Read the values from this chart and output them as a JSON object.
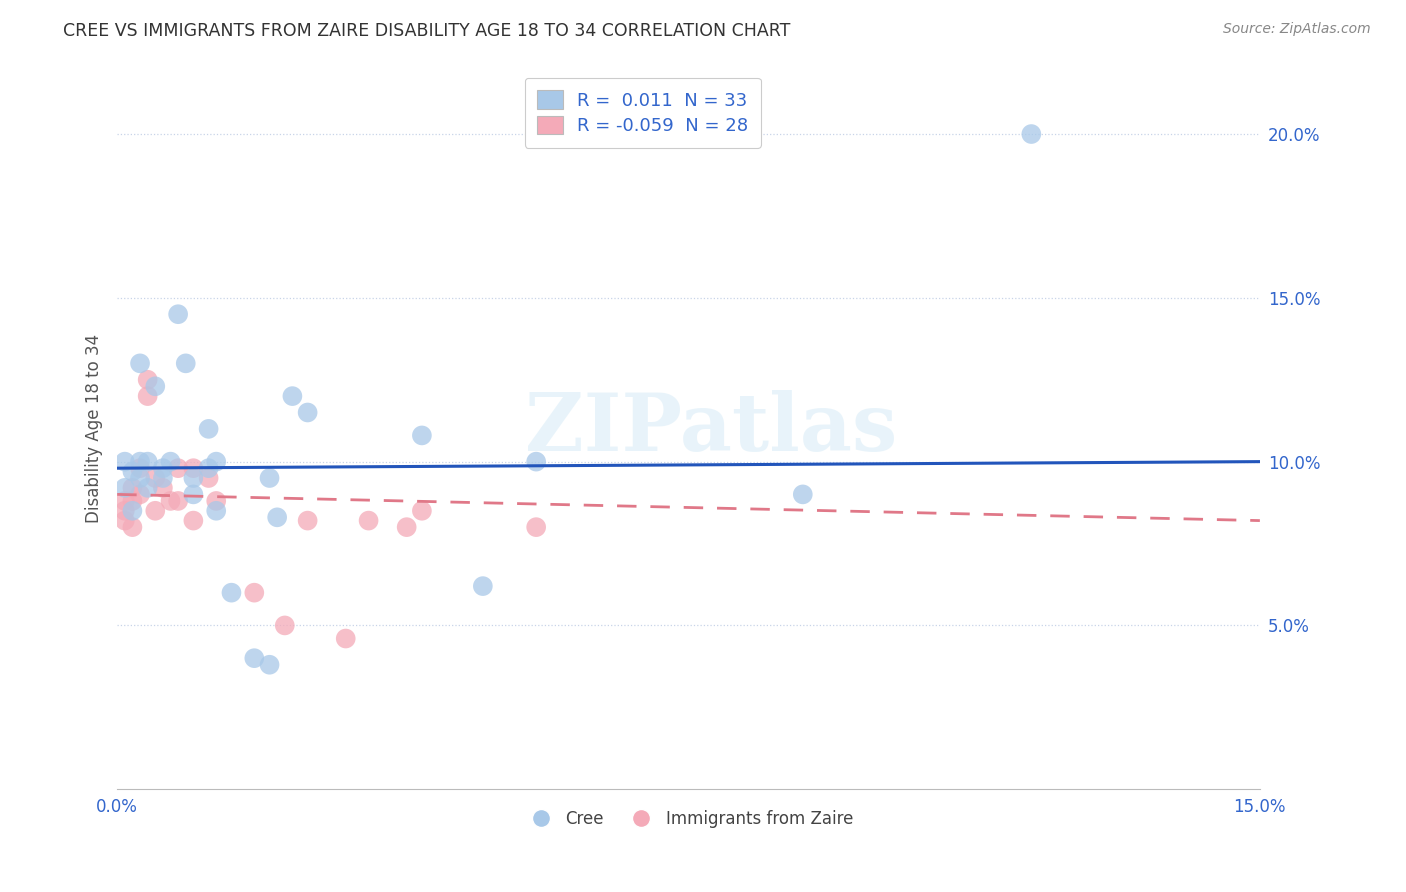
{
  "title": "CREE VS IMMIGRANTS FROM ZAIRE DISABILITY AGE 18 TO 34 CORRELATION CHART",
  "source": "Source: ZipAtlas.com",
  "xlabel": "",
  "ylabel": "Disability Age 18 to 34",
  "xlim": [
    0.0,
    0.15
  ],
  "ylim": [
    0.0,
    0.22
  ],
  "yticks": [
    0.05,
    0.1,
    0.15,
    0.2
  ],
  "ytick_labels": [
    "5.0%",
    "10.0%",
    "15.0%",
    "20.0%"
  ],
  "xticks": [
    0.0,
    0.025,
    0.05,
    0.075,
    0.1,
    0.125,
    0.15
  ],
  "xtick_labels": [
    "0.0%",
    "",
    "",
    "",
    "",
    "",
    "15.0%"
  ],
  "watermark": "ZIPatlas",
  "cree_color": "#a8c8e8",
  "zaire_color": "#f4aab8",
  "cree_line_color": "#2255bb",
  "zaire_line_color": "#e07888",
  "background_color": "#ffffff",
  "grid_color": "#c8d4e8",
  "cree_line_y0": 0.098,
  "cree_line_y1": 0.1,
  "zaire_line_y0": 0.09,
  "zaire_line_y1": 0.082,
  "cree_points": [
    [
      0.001,
      0.1
    ],
    [
      0.001,
      0.092
    ],
    [
      0.002,
      0.097
    ],
    [
      0.002,
      0.085
    ],
    [
      0.003,
      0.1
    ],
    [
      0.003,
      0.095
    ],
    [
      0.003,
      0.13
    ],
    [
      0.004,
      0.092
    ],
    [
      0.004,
      0.1
    ],
    [
      0.005,
      0.123
    ],
    [
      0.006,
      0.095
    ],
    [
      0.006,
      0.098
    ],
    [
      0.007,
      0.1
    ],
    [
      0.008,
      0.145
    ],
    [
      0.009,
      0.13
    ],
    [
      0.01,
      0.09
    ],
    [
      0.01,
      0.095
    ],
    [
      0.012,
      0.098
    ],
    [
      0.012,
      0.11
    ],
    [
      0.013,
      0.085
    ],
    [
      0.013,
      0.1
    ],
    [
      0.015,
      0.06
    ],
    [
      0.018,
      0.04
    ],
    [
      0.02,
      0.038
    ],
    [
      0.02,
      0.095
    ],
    [
      0.021,
      0.083
    ],
    [
      0.023,
      0.12
    ],
    [
      0.025,
      0.115
    ],
    [
      0.04,
      0.108
    ],
    [
      0.048,
      0.062
    ],
    [
      0.055,
      0.1
    ],
    [
      0.09,
      0.09
    ],
    [
      0.12,
      0.2
    ]
  ],
  "zaire_points": [
    [
      0.001,
      0.088
    ],
    [
      0.001,
      0.085
    ],
    [
      0.001,
      0.082
    ],
    [
      0.002,
      0.092
    ],
    [
      0.002,
      0.088
    ],
    [
      0.002,
      0.08
    ],
    [
      0.003,
      0.098
    ],
    [
      0.003,
      0.09
    ],
    [
      0.004,
      0.125
    ],
    [
      0.004,
      0.12
    ],
    [
      0.005,
      0.095
    ],
    [
      0.005,
      0.085
    ],
    [
      0.006,
      0.092
    ],
    [
      0.007,
      0.088
    ],
    [
      0.008,
      0.098
    ],
    [
      0.008,
      0.088
    ],
    [
      0.01,
      0.098
    ],
    [
      0.01,
      0.082
    ],
    [
      0.012,
      0.095
    ],
    [
      0.013,
      0.088
    ],
    [
      0.018,
      0.06
    ],
    [
      0.022,
      0.05
    ],
    [
      0.025,
      0.082
    ],
    [
      0.03,
      0.046
    ],
    [
      0.033,
      0.082
    ],
    [
      0.038,
      0.08
    ],
    [
      0.04,
      0.085
    ],
    [
      0.055,
      0.08
    ]
  ]
}
